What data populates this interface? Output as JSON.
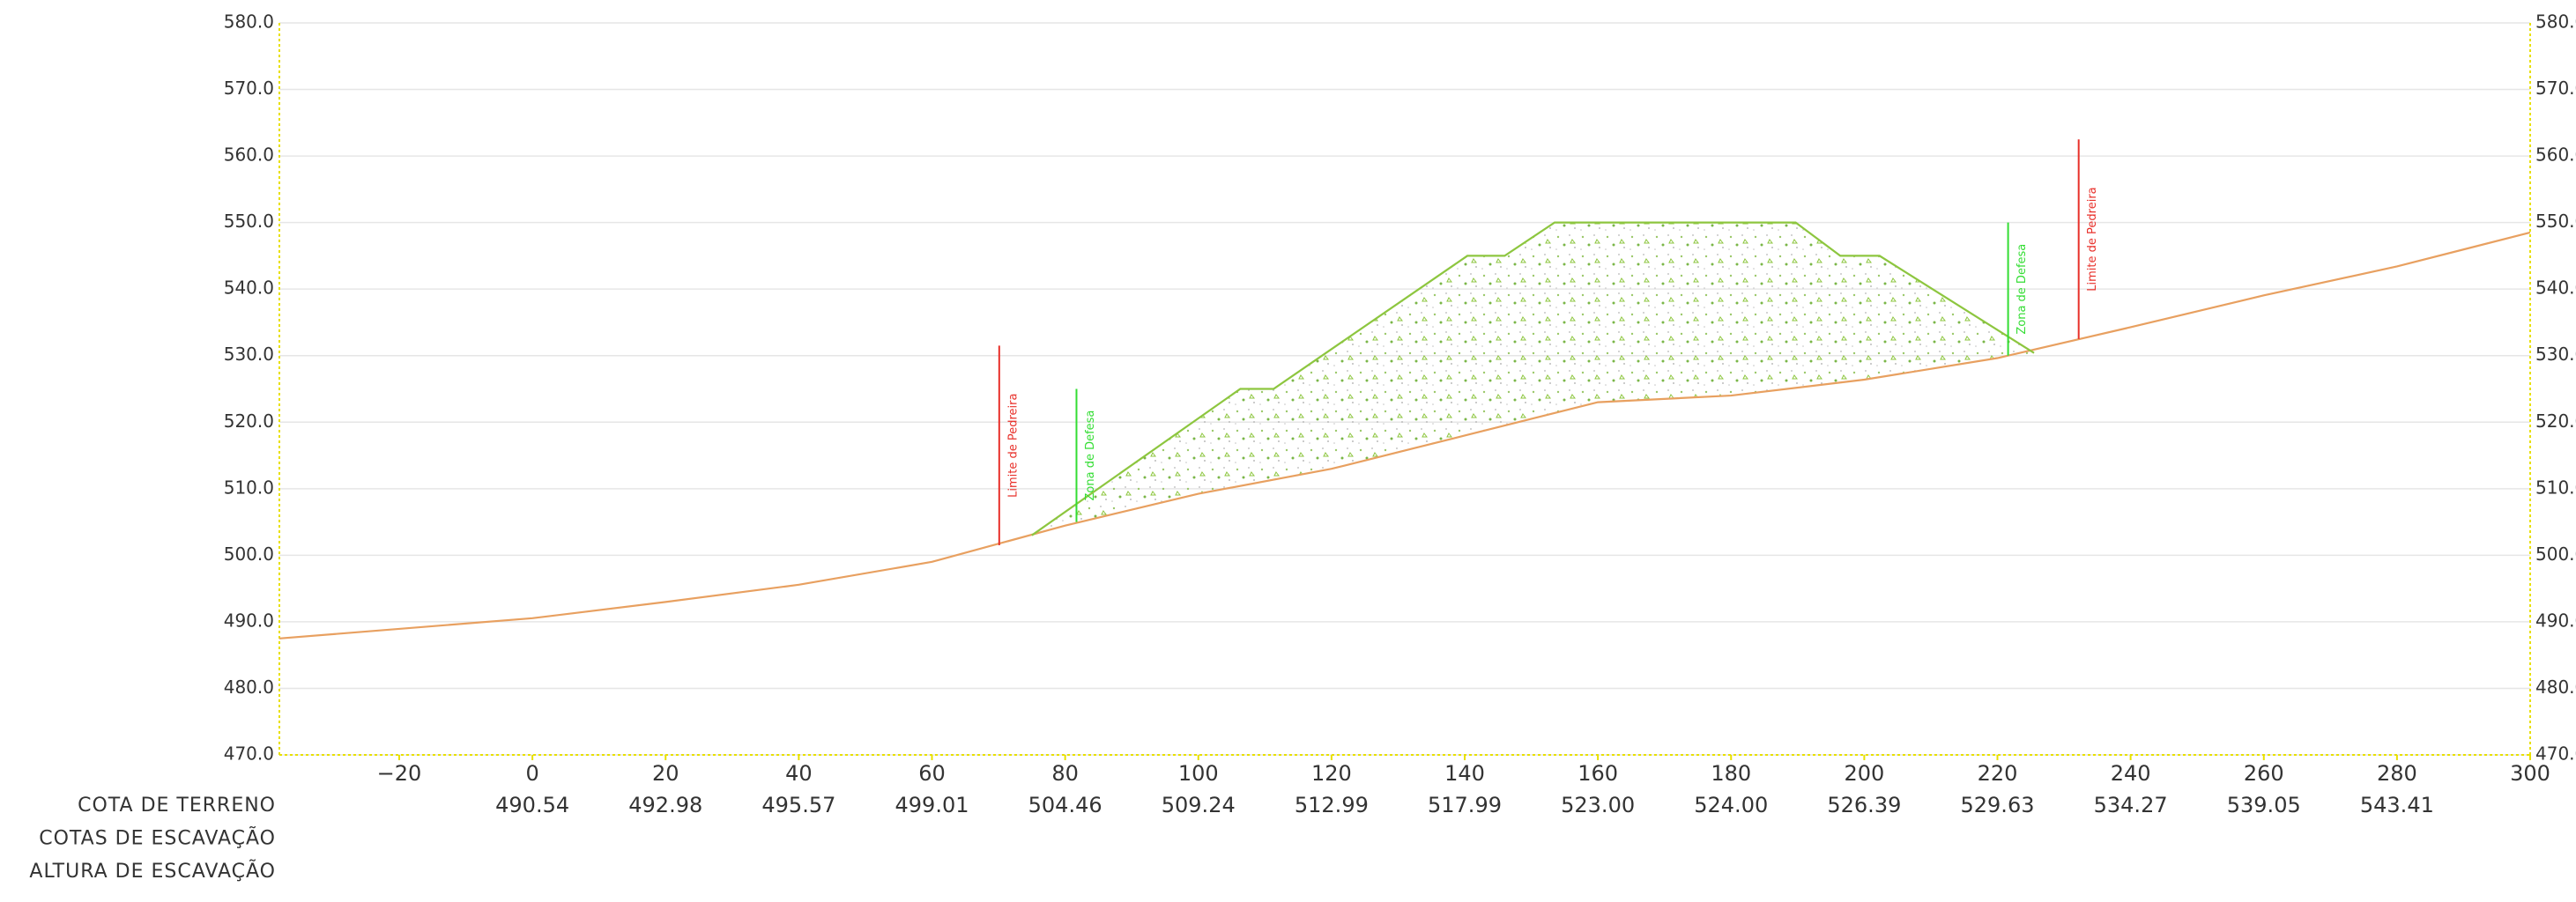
{
  "chart_data": {
    "type": "line",
    "xlim": [
      -38,
      300
    ],
    "ylim": [
      470,
      580
    ],
    "xticks": [
      {
        "value": -20,
        "label": "−20"
      },
      0,
      20,
      40,
      60,
      80,
      100,
      120,
      140,
      160,
      180,
      200,
      220,
      240,
      260,
      280,
      300
    ],
    "yticks": [
      {
        "value": 470,
        "label": "470.0"
      },
      {
        "value": 480,
        "label": "480.0"
      },
      {
        "value": 490,
        "label": "490.0"
      },
      {
        "value": 500,
        "label": "500.0"
      },
      {
        "value": 510,
        "label": "510.0"
      },
      {
        "value": 520,
        "label": "520.0"
      },
      {
        "value": 530,
        "label": "530.0"
      },
      {
        "value": 540,
        "label": "540.0"
      },
      {
        "value": 550,
        "label": "550.0"
      },
      {
        "value": 560,
        "label": "560.0"
      },
      {
        "value": 570,
        "label": "570.0"
      },
      {
        "value": 580,
        "label": "580.0"
      }
    ],
    "grid": true,
    "row_labels": [
      "COTA DE TERRENO",
      "COTAS DE ESCAVAÇÃO",
      "ALTURA DE ESCAVAÇÃO"
    ],
    "series": [
      {
        "color": "#e8a060",
        "x": [
          -38,
          0,
          20,
          40,
          60,
          80,
          100,
          120,
          140,
          160,
          180,
          200,
          220,
          240,
          260,
          280,
          300
        ],
        "values": [
          487.5,
          490.54,
          492.98,
          495.57,
          499.01,
          504.46,
          509.24,
          512.99,
          517.99,
          523.0,
          524.0,
          526.39,
          529.63,
          534.27,
          539.05,
          543.41,
          548.5
        ],
        "value_labels": [
          null,
          "490.54",
          "492.98",
          "495.57",
          "499.01",
          "504.46",
          "509.24",
          "512.99",
          "517.99",
          "523.00",
          "524.00",
          "526.39",
          "529.63",
          "534.27",
          "539.05",
          "543.41",
          null
        ]
      },
      {
        "color": "#8dc63f",
        "x": [
          75,
          106.3,
          111.3,
          140.4,
          146,
          153.5,
          189.7,
          196.4,
          202.3,
          225.5
        ],
        "values": [
          503,
          525,
          525,
          545,
          545,
          550,
          550,
          545,
          545,
          530.4
        ]
      }
    ],
    "annotations": [
      {
        "text": "Limite de Pedreira",
        "color": "#e8302a",
        "x": 70.1,
        "y": [
          501.5,
          531.5
        ]
      },
      {
        "text": "Zona de Defesa",
        "color": "#33dd33",
        "x": 81.7,
        "y": [
          505,
          525
        ]
      },
      {
        "text": "Zona de Defesa",
        "color": "#33dd33",
        "x": 221.6,
        "y": [
          530,
          550
        ]
      },
      {
        "text": "Limite de Pedreira",
        "color": "#e8302a",
        "x": 232.2,
        "y": [
          532.5,
          562.5
        ]
      }
    ]
  }
}
